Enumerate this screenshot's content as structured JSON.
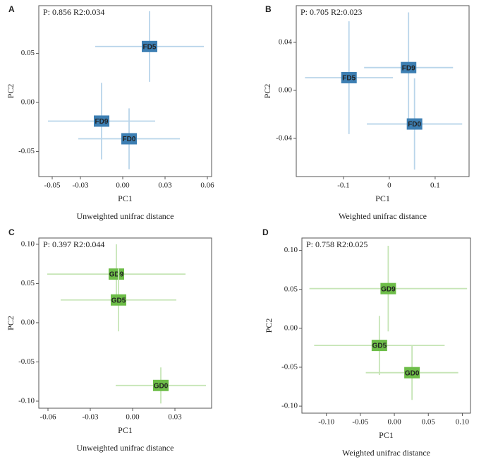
{
  "chart_data": [
    {
      "type": "scatter",
      "panel": "A",
      "annotation": "P: 0.856  R2:0.034",
      "xlabel": "PC1",
      "ylabel": "PC2",
      "caption": "Unweighted unifrac distance",
      "labels": [
        "FD5",
        "FD9",
        "FD0"
      ],
      "x": [
        0.019,
        -0.015,
        0.0045
      ],
      "values": [
        0.057,
        -0.019,
        -0.037
      ],
      "x_error": [
        0.0385,
        0.038,
        0.036
      ],
      "y_error": [
        0.036,
        0.039,
        0.031
      ],
      "marker_color": "#3d7fb3",
      "error_color": "#b9d5ea",
      "xlim": [
        -0.0595,
        0.063
      ],
      "ylim": [
        -0.0755,
        0.0986
      ],
      "xticks": [
        -0.05,
        -0.03,
        {
          "value": 0,
          "label": "0.00"
        },
        0.03,
        0.06
      ],
      "yticks": [
        -0.05,
        {
          "value": 0,
          "label": "0.00"
        },
        0.05
      ]
    },
    {
      "type": "scatter",
      "panel": "B",
      "annotation": "P: 0.705  R2:0.023",
      "xlabel": "PC1",
      "ylabel": "PC2",
      "caption": "Weighted unifrac distance",
      "labels": [
        "FD5",
        "FD9",
        "FD0"
      ],
      "x": [
        -0.088,
        0.042,
        0.055
      ],
      "values": [
        0.0106,
        0.019,
        -0.028
      ],
      "x_error": [
        0.096,
        0.097,
        0.104
      ],
      "y_error": [
        0.047,
        0.046,
        0.038
      ],
      "marker_color": "#3d7fb3",
      "error_color": "#b9d5ea",
      "xlim": [
        -0.203,
        0.174
      ],
      "ylim": [
        -0.0718,
        0.0706
      ],
      "xticks": [
        -0.1,
        0,
        0.1
      ],
      "yticks": [
        -0.04,
        {
          "value": 0,
          "label": "0.00"
        },
        0.04
      ]
    },
    {
      "type": "scatter",
      "panel": "C",
      "annotation": "P: 0.397  R2:0.044",
      "xlabel": "PC1",
      "ylabel": "PC2",
      "caption": "Unweighted unifrac distance",
      "labels": [
        "GD9",
        "GD5",
        "GD0"
      ],
      "x": [
        -0.0115,
        -0.01,
        0.02
      ],
      "values": [
        0.062,
        0.029,
        -0.08
      ],
      "x_error": [
        0.049,
        0.041,
        0.032
      ],
      "y_error": [
        0.038,
        0.04,
        0.023
      ],
      "marker_color": "#6dbd48",
      "error_color": "#c6e5b6",
      "xlim": [
        -0.0665,
        0.056
      ],
      "ylim": [
        -0.109,
        0.108
      ],
      "xticks": [
        -0.06,
        -0.03,
        {
          "value": 0,
          "label": "0.00"
        },
        0.03
      ],
      "yticks": [
        {
          "value": -0.1,
          "label": "-0.10"
        },
        -0.05,
        {
          "value": 0,
          "label": "0.00"
        },
        0.05,
        {
          "value": 0.1,
          "label": "0.10"
        }
      ]
    },
    {
      "type": "scatter",
      "panel": "D",
      "annotation": "P: 0.758  R2:0.025",
      "xlabel": "PC1",
      "ylabel": "PC2",
      "caption": "Weighted unifrac distance",
      "labels": [
        "GD9",
        "GD5",
        "GD0"
      ],
      "x": [
        -0.009,
        -0.022,
        0.026
      ],
      "values": [
        0.051,
        -0.022,
        -0.057
      ],
      "x_error": [
        0.116,
        0.096,
        0.068
      ],
      "y_error": [
        0.055,
        0.038,
        0.035
      ],
      "marker_color": "#6dbd48",
      "error_color": "#c6e5b6",
      "xlim": [
        -0.136,
        0.112
      ],
      "ylim": [
        -0.109,
        0.116
      ],
      "xticks": [
        {
          "value": -0.1,
          "label": "-0.10"
        },
        -0.05,
        {
          "value": 0,
          "label": "0.00"
        },
        0.05,
        {
          "value": 0.1,
          "label": "0.10"
        }
      ],
      "yticks": [
        {
          "value": -0.1,
          "label": "-0.10"
        },
        -0.05,
        {
          "value": 0,
          "label": "0.00"
        },
        0.05,
        {
          "value": 0.1,
          "label": "0.10"
        }
      ]
    }
  ]
}
